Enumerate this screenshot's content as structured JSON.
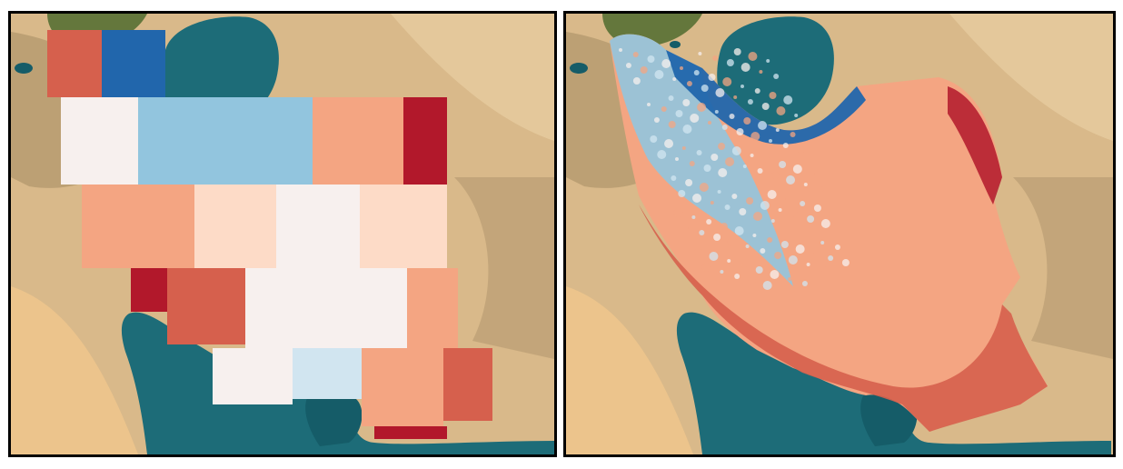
{
  "figure": {
    "panels": [
      {
        "id": "left",
        "rendering": "coarse-grid"
      },
      {
        "id": "right",
        "rendering": "high-resolution"
      }
    ]
  },
  "colors": {
    "land_desert": "#d9b98a",
    "land_light": "#e8cfa2",
    "land_sand": "#efc58c",
    "mountain": "#a98f66",
    "vegetation": "#4f6b2e",
    "water": "#1d6c78",
    "water_dark": "#155c68",
    "diverging_scale": [
      "#b2182b",
      "#d6604d",
      "#f4a582",
      "#fddbc7",
      "#f7f0ee",
      "#d1e5f0",
      "#92c5de",
      "#4393c3",
      "#2166ac"
    ]
  },
  "grid_cells": [
    {
      "v": 0.85
    },
    {
      "v": -0.9
    },
    {
      "v": 0.0
    },
    {
      "v": -0.6
    },
    {
      "v": -0.6
    },
    {
      "v": 0.55
    },
    {
      "v": 0.95
    },
    {
      "v": 0.5
    },
    {
      "v": 0.45
    },
    {
      "v": 0.25
    },
    {
      "v": 0.0
    },
    {
      "v": 0.25
    },
    {
      "v": 0.95
    },
    {
      "v": 0.7
    },
    {
      "v": 0.0
    },
    {
      "v": 0.4
    },
    {
      "v": -0.1
    },
    {
      "v": -0.3
    },
    {
      "v": 0.45
    },
    {
      "v": 0.75
    },
    {
      "v": 0.9
    }
  ]
}
